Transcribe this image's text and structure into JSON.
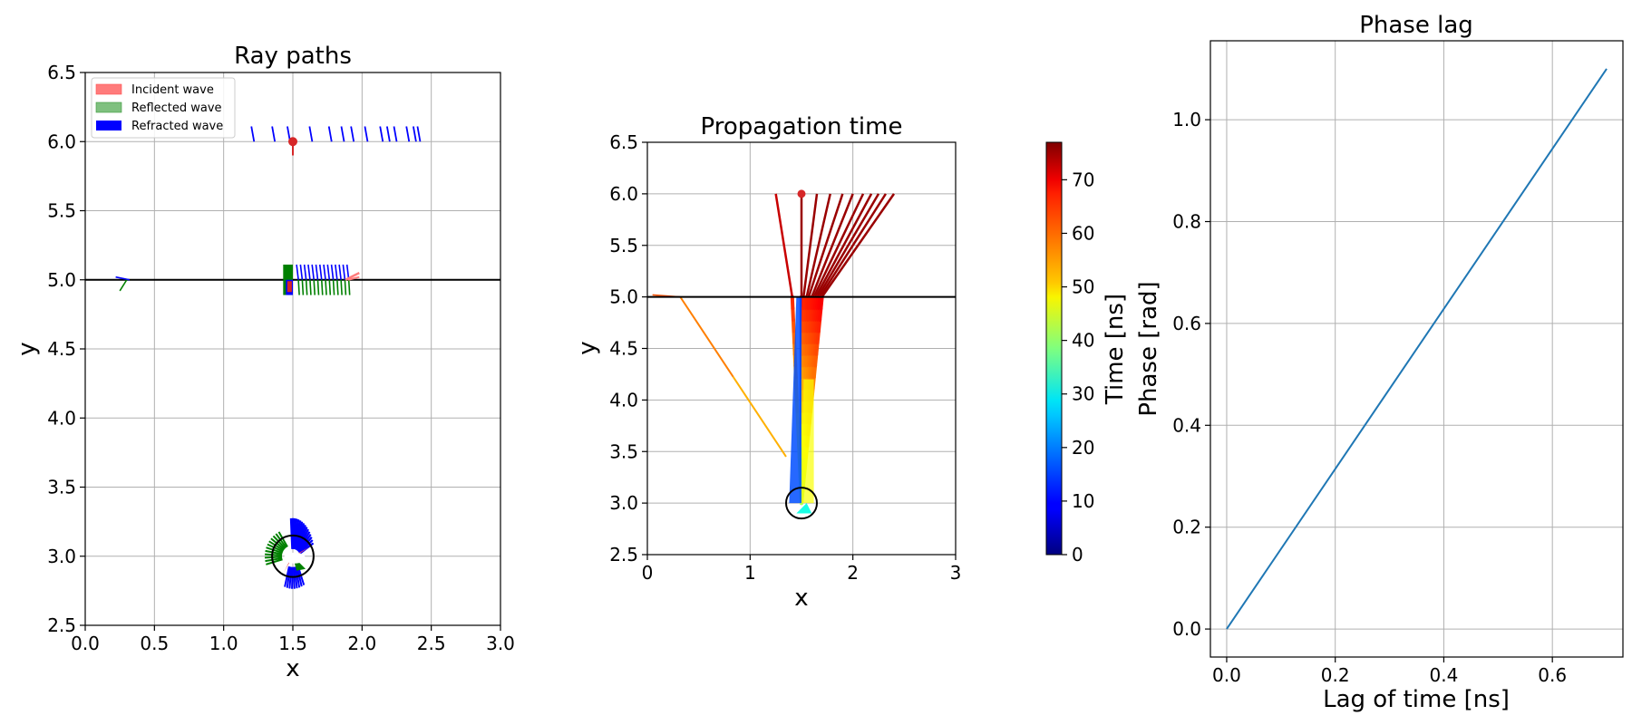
{
  "chart_data": [
    {
      "type": "line",
      "title": "Ray paths",
      "xlabel": "x",
      "ylabel": "y",
      "xlim": [
        0.0,
        3.0
      ],
      "ylim": [
        2.5,
        6.5
      ],
      "xticks": [
        "0.0",
        "0.5",
        "1.0",
        "1.5",
        "2.0",
        "2.5",
        "3.0"
      ],
      "yticks": [
        "2.5",
        "3.0",
        "3.5",
        "4.0",
        "4.5",
        "5.0",
        "5.5",
        "6.0",
        "6.5"
      ],
      "grid": true,
      "legend_position": "top-left",
      "legend": [
        {
          "label": "Incident wave",
          "color": "#ff7b7b"
        },
        {
          "label": "Reflected wave",
          "color": "#7fc07f"
        },
        {
          "label": "Refracted wave",
          "color": "#0000ff"
        }
      ],
      "source": {
        "x": 1.5,
        "y": 6.0,
        "color": "#d62728"
      },
      "interface_y": 5.0,
      "target": {
        "x": 1.5,
        "y": 3.0,
        "radius": 0.15
      }
    },
    {
      "type": "line",
      "title": "Propagation time",
      "xlabel": "x",
      "ylabel": "y",
      "xlim": [
        0,
        3
      ],
      "ylim": [
        2.5,
        6.5
      ],
      "xticks": [
        "0",
        "1",
        "2",
        "3"
      ],
      "yticks": [
        "2.5",
        "3.0",
        "3.5",
        "4.0",
        "4.5",
        "5.0",
        "5.5",
        "6.0",
        "6.5"
      ],
      "grid": true,
      "source": {
        "x": 1.5,
        "y": 6.0
      },
      "interface_y": 5.0,
      "target": {
        "x": 1.5,
        "y": 3.0,
        "radius": 0.15
      },
      "colorbar": {
        "label": "Time [ns]",
        "range": [
          0,
          77
        ],
        "ticks": [
          "0",
          "10",
          "20",
          "30",
          "40",
          "50",
          "60",
          "70"
        ],
        "colormap": "jet"
      },
      "rays": [
        {
          "top_x": 1.25,
          "bottom_x": 1.41
        },
        {
          "top_x": 1.5,
          "bottom_x": 1.5
        },
        {
          "top_x": 1.65,
          "bottom_x": 1.52
        },
        {
          "top_x": 1.78,
          "bottom_x": 1.55
        },
        {
          "top_x": 1.9,
          "bottom_x": 1.57
        },
        {
          "top_x": 2.0,
          "bottom_x": 1.6
        },
        {
          "top_x": 2.1,
          "bottom_x": 1.62
        },
        {
          "top_x": 2.18,
          "bottom_x": 1.64
        },
        {
          "top_x": 2.25,
          "bottom_x": 1.66
        },
        {
          "top_x": 2.32,
          "bottom_x": 1.68
        },
        {
          "top_x": 2.4,
          "bottom_x": 1.7
        }
      ],
      "reflected_ray": {
        "x1": 0.32,
        "y1": 5.0,
        "x2": 1.35,
        "y2": 3.45
      }
    },
    {
      "type": "line",
      "title": "Phase lag",
      "xlabel": "Lag of time [ns]",
      "ylabel": "Phase [rad]",
      "xlim": [
        -0.03,
        0.73
      ],
      "ylim": [
        -0.055,
        1.155
      ],
      "xticks": [
        "0.0",
        "0.2",
        "0.4",
        "0.6"
      ],
      "yticks": [
        "0.0",
        "0.2",
        "0.4",
        "0.6",
        "0.8",
        "1.0"
      ],
      "grid": true,
      "series": [
        {
          "color": "#1f77b4",
          "x": [
            0.0,
            0.7
          ],
          "y": [
            0.0,
            1.1
          ]
        }
      ]
    }
  ]
}
